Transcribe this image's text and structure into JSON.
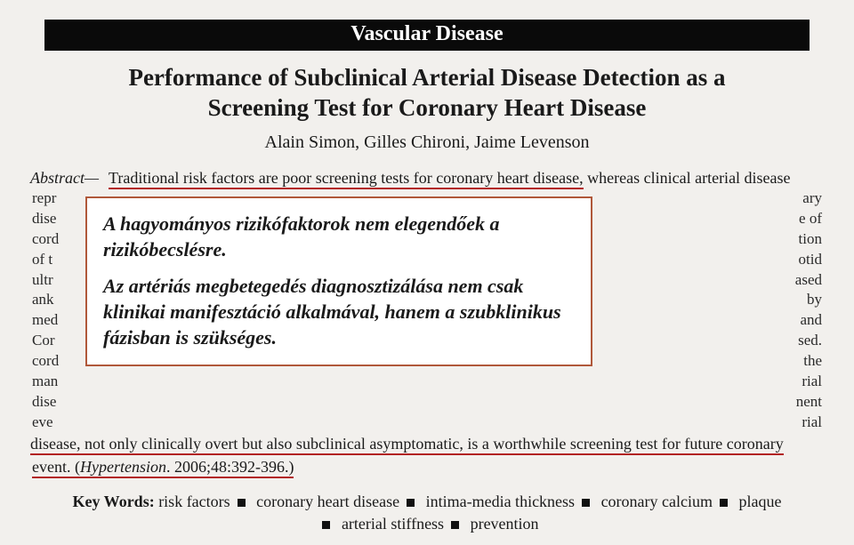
{
  "section_bar": "Vascular Disease",
  "paper_title_l1": "Performance of Subclinical Arterial Disease Detection as a",
  "paper_title_l2": "Screening Test for Coronary Heart Disease",
  "authors": "Alain Simon, Gilles Chironi, Jaime Levenson",
  "abstract_label": "Abstract—",
  "abstract_first_underlined": "Traditional risk factors are poor screening tests for coronary heart disease,",
  "abstract_first_tail": " whereas clinical arterial disease",
  "ghost_rows": [
    {
      "l": "repr",
      "r": "ary"
    },
    {
      "l": "dise",
      "r": "e of"
    },
    {
      "l": "cord",
      "r": "tion"
    },
    {
      "l": "of t",
      "r": "otid"
    },
    {
      "l": "ultr",
      "r": "ased"
    },
    {
      "l": "ank",
      "r": "by"
    },
    {
      "l": "med",
      "r": "and"
    },
    {
      "l": "Cor",
      "r": "sed."
    },
    {
      "l": "cord",
      "r": "the"
    },
    {
      "l": "man",
      "r": "rial"
    },
    {
      "l": "dise",
      "r": "nent"
    },
    {
      "l": "eve",
      "r": "rial"
    }
  ],
  "abstract_tail": "disease, not only clinically overt but also subclinical asymptomatic, is a worthwhile screening test for future coronary",
  "citation_prefix": "event. (",
  "citation_journal": "Hypertension",
  "citation_rest": ". 2006;48:392-396.)",
  "keywords_label": "Key Words:",
  "keywords": [
    "risk factors",
    "coronary heart disease",
    "intima-media thickness",
    "coronary calcium",
    "plaque",
    "arterial stiffness",
    "prevention"
  ],
  "overlay_p1": "A hagyományos rizikófaktorok nem elegendőek a rizikóbecslésre.",
  "overlay_p2": "Az artériás megbetegedés diagnosztizálása nem csak klinikai manifesztáció alkalmával, hanem a szubklinikus fázisban is szükséges.",
  "colors": {
    "page_bg": "#f2f0ed",
    "bar_bg": "#0a0a0a",
    "bar_fg": "#ffffff",
    "underline": "#b22222",
    "overlay_border": "#b0583a",
    "overlay_bg": "#ffffff",
    "text": "#1a1a1a"
  }
}
